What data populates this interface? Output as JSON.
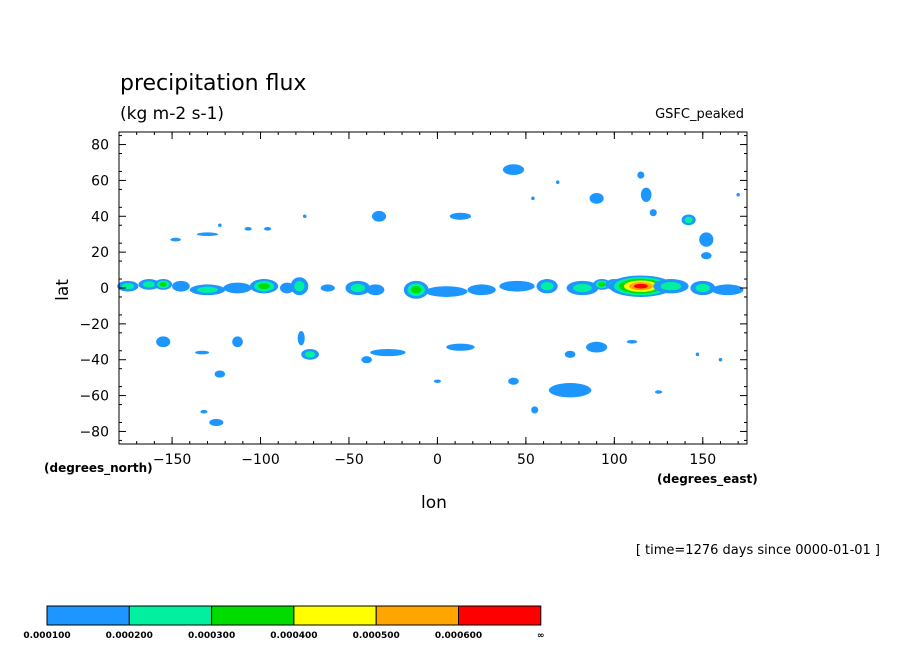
{
  "chart_data": {
    "type": "heatmap",
    "title": "precipitation flux",
    "units": "(kg m-2 s-1)",
    "source_label": "GSFC_peaked",
    "xlabel": "lon",
    "ylabel": "lat",
    "x_unit": "(degrees_east)",
    "y_unit": "(degrees_north)",
    "xlim": [
      -180,
      175
    ],
    "ylim": [
      -87,
      87
    ],
    "x_ticks": [
      -150,
      -100,
      -50,
      0,
      50,
      100,
      150
    ],
    "y_ticks": [
      80,
      60,
      40,
      20,
      0,
      -20,
      -40,
      -60,
      -80
    ],
    "time_label": "[ time=1276 days since 0000-01-01 ]",
    "colorbar": {
      "colors": [
        "#1e96ff",
        "#00f0a0",
        "#00dc00",
        "#ffff00",
        "#ffa500",
        "#ff0000"
      ],
      "labels": [
        "0.000100",
        "0.000200",
        "0.000300",
        "0.000400",
        "0.000500",
        "0.000600",
        "∞"
      ]
    },
    "blobs": [
      {
        "lon": -175,
        "lat": 1,
        "rx": 6,
        "ry": 3,
        "level": 2
      },
      {
        "lon": -163,
        "lat": 2,
        "rx": 6,
        "ry": 3,
        "level": 2
      },
      {
        "lon": -155,
        "lat": 2,
        "rx": 5,
        "ry": 3,
        "level": 3
      },
      {
        "lon": -145,
        "lat": 1,
        "rx": 5,
        "ry": 3,
        "level": 1
      },
      {
        "lon": -130,
        "lat": -1,
        "rx": 10,
        "ry": 3,
        "level": 2
      },
      {
        "lon": -113,
        "lat": 0,
        "rx": 8,
        "ry": 3,
        "level": 1
      },
      {
        "lon": -98,
        "lat": 1,
        "rx": 8,
        "ry": 4,
        "level": 3
      },
      {
        "lon": -85,
        "lat": 0,
        "rx": 4,
        "ry": 3,
        "level": 1
      },
      {
        "lon": -78,
        "lat": 1,
        "rx": 5,
        "ry": 5,
        "level": 2
      },
      {
        "lon": -62,
        "lat": 0,
        "rx": 4,
        "ry": 2,
        "level": 1
      },
      {
        "lon": -45,
        "lat": 0,
        "rx": 7,
        "ry": 4,
        "level": 2
      },
      {
        "lon": -35,
        "lat": -1,
        "rx": 5,
        "ry": 3,
        "level": 1
      },
      {
        "lon": -12,
        "lat": -1,
        "rx": 7,
        "ry": 5,
        "level": 3
      },
      {
        "lon": 5,
        "lat": -2,
        "rx": 12,
        "ry": 3,
        "level": 1
      },
      {
        "lon": 25,
        "lat": -1,
        "rx": 8,
        "ry": 3,
        "level": 1
      },
      {
        "lon": 45,
        "lat": 1,
        "rx": 10,
        "ry": 3,
        "level": 1
      },
      {
        "lon": 62,
        "lat": 1,
        "rx": 6,
        "ry": 4,
        "level": 2
      },
      {
        "lon": 82,
        "lat": 0,
        "rx": 9,
        "ry": 4,
        "level": 2
      },
      {
        "lon": 93,
        "lat": 2,
        "rx": 5,
        "ry": 3,
        "level": 3
      },
      {
        "lon": 100,
        "lat": 2,
        "rx": 5,
        "ry": 3,
        "level": 2
      },
      {
        "lon": 115,
        "lat": 1,
        "rx": 18,
        "ry": 6,
        "level": 6
      },
      {
        "lon": 132,
        "lat": 1,
        "rx": 10,
        "ry": 4,
        "level": 2
      },
      {
        "lon": 150,
        "lat": 0,
        "rx": 7,
        "ry": 4,
        "level": 2
      },
      {
        "lon": 164,
        "lat": -1,
        "rx": 9,
        "ry": 3,
        "level": 1
      },
      {
        "lon": 43,
        "lat": 66,
        "rx": 6,
        "ry": 3,
        "level": 1
      },
      {
        "lon": 68,
        "lat": 59,
        "rx": 1,
        "ry": 1,
        "level": 1
      },
      {
        "lon": 54,
        "lat": 50,
        "rx": 1,
        "ry": 1,
        "level": 1
      },
      {
        "lon": 90,
        "lat": 50,
        "rx": 4,
        "ry": 3,
        "level": 1
      },
      {
        "lon": 115,
        "lat": 63,
        "rx": 2,
        "ry": 2,
        "level": 1
      },
      {
        "lon": 118,
        "lat": 52,
        "rx": 3,
        "ry": 4,
        "level": 1
      },
      {
        "lon": 122,
        "lat": 42,
        "rx": 2,
        "ry": 2,
        "level": 1
      },
      {
        "lon": 142,
        "lat": 38,
        "rx": 4,
        "ry": 3,
        "level": 2
      },
      {
        "lon": 152,
        "lat": 27,
        "rx": 4,
        "ry": 4,
        "level": 1
      },
      {
        "lon": 152,
        "lat": 18,
        "rx": 3,
        "ry": 2,
        "level": 1
      },
      {
        "lon": 170,
        "lat": 52,
        "rx": 1,
        "ry": 1,
        "level": 1
      },
      {
        "lon": -123,
        "lat": 35,
        "rx": 1,
        "ry": 1,
        "level": 1
      },
      {
        "lon": -96,
        "lat": 33,
        "rx": 2,
        "ry": 1,
        "level": 1
      },
      {
        "lon": -75,
        "lat": 40,
        "rx": 1,
        "ry": 1,
        "level": 1
      },
      {
        "lon": -33,
        "lat": 40,
        "rx": 4,
        "ry": 3,
        "level": 1
      },
      {
        "lon": 13,
        "lat": 40,
        "rx": 6,
        "ry": 2,
        "level": 1
      },
      {
        "lon": -148,
        "lat": 27,
        "rx": 3,
        "ry": 1,
        "level": 1
      },
      {
        "lon": -130,
        "lat": 30,
        "rx": 6,
        "ry": 1,
        "level": 1
      },
      {
        "lon": -107,
        "lat": 33,
        "rx": 2,
        "ry": 1,
        "level": 1
      },
      {
        "lon": -155,
        "lat": -30,
        "rx": 4,
        "ry": 3,
        "level": 1
      },
      {
        "lon": -133,
        "lat": -36,
        "rx": 4,
        "ry": 1,
        "level": 1
      },
      {
        "lon": -113,
        "lat": -30,
        "rx": 3,
        "ry": 3,
        "level": 1
      },
      {
        "lon": -123,
        "lat": -48,
        "rx": 3,
        "ry": 2,
        "level": 1
      },
      {
        "lon": -72,
        "lat": -37,
        "rx": 5,
        "ry": 3,
        "level": 2
      },
      {
        "lon": -77,
        "lat": -28,
        "rx": 2,
        "ry": 4,
        "level": 1
      },
      {
        "lon": -28,
        "lat": -36,
        "rx": 10,
        "ry": 2,
        "level": 1
      },
      {
        "lon": -40,
        "lat": -40,
        "rx": 3,
        "ry": 2,
        "level": 1
      },
      {
        "lon": 13,
        "lat": -33,
        "rx": 8,
        "ry": 2,
        "level": 1
      },
      {
        "lon": 0,
        "lat": -52,
        "rx": 2,
        "ry": 1,
        "level": 1
      },
      {
        "lon": 43,
        "lat": -52,
        "rx": 3,
        "ry": 2,
        "level": 1
      },
      {
        "lon": 75,
        "lat": -57,
        "rx": 12,
        "ry": 4,
        "level": 1
      },
      {
        "lon": 55,
        "lat": -68,
        "rx": 2,
        "ry": 2,
        "level": 1
      },
      {
        "lon": 90,
        "lat": -33,
        "rx": 6,
        "ry": 3,
        "level": 1
      },
      {
        "lon": 110,
        "lat": -30,
        "rx": 3,
        "ry": 1,
        "level": 1
      },
      {
        "lon": 75,
        "lat": -37,
        "rx": 3,
        "ry": 2,
        "level": 1
      },
      {
        "lon": 125,
        "lat": -58,
        "rx": 2,
        "ry": 1,
        "level": 1
      },
      {
        "lon": -125,
        "lat": -75,
        "rx": 4,
        "ry": 2,
        "level": 1
      },
      {
        "lon": -132,
        "lat": -69,
        "rx": 2,
        "ry": 1,
        "level": 1
      },
      {
        "lon": 147,
        "lat": -37,
        "rx": 1,
        "ry": 1,
        "level": 1
      },
      {
        "lon": 160,
        "lat": -40,
        "rx": 1,
        "ry": 1,
        "level": 1
      }
    ]
  }
}
